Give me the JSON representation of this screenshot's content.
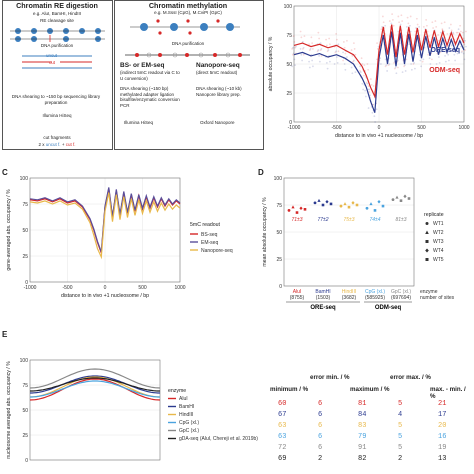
{
  "panelA": {
    "left": {
      "title": "Chromatin RE digestion",
      "sub": "e.g. AluI, BamHI, HindIII",
      "step1": "RE cleavage site",
      "step2": "DNA purification",
      "uncut": "uncut",
      "cut": "cut",
      "step3": "DNA shearing to ~150 bp sequencing library preparation",
      "step4": "Illumina HiSeq",
      "footer_title": "cut fragments",
      "footer_formula_a": "2 x ",
      "footer_formula_b": "uncut f.",
      "footer_formula_c": " + ",
      "footer_formula_d": "cut f."
    },
    "right": {
      "title": "Chromatin methylation",
      "sub": "e.g. M.SssI (CpG), M.CviPI (GpC)",
      "step1": "DNA purification",
      "bs_title": "BS- or EM-seq",
      "bs_sub": "(indirect 5mC readout via C to U conversion)",
      "np_title": "Nanopore-seq",
      "np_sub": "(direct 5mC readout)",
      "bs_steps": "DNA shearing (~150 bp) methylated adapter ligation bisulfite/enzymatic conversion PCR",
      "np_steps": "DNA shearing (~10 kb) Nanopore library prep.",
      "bs_platform": "Illumina HiSeq",
      "np_platform": "Oxford Nanopore"
    }
  },
  "panelB": {
    "ylabel": "absolute occupancy / %",
    "xlabel": "distance to in vivo +1 nucleosome / bp",
    "legend_ore": "ORE-seq",
    "legend_odm": "ODM-seq"
  },
  "panelC": {
    "letter": "C",
    "ylabel": "gene-averaged abs. occupancy / %",
    "xlabel": "distance to in vivo +1 nucleosome / bp",
    "legend_title": "5mC readout",
    "legend": [
      "BS-seq",
      "EM-seq",
      "Nanopore-seq"
    ]
  },
  "panelD": {
    "letter": "D",
    "ylabel": "mean absolute occupancy / %",
    "legend_title": "replicate",
    "replicates": [
      "WT1",
      "WT2",
      "WT3",
      "WT4",
      "WT5"
    ],
    "enzyme_label": "enzyme",
    "sites_label": "number of sites",
    "group_ore": "ORE-seq",
    "group_odm": "ODM-seq",
    "categories": [
      {
        "name": "AluI",
        "sites": "(8755)",
        "summary": "71±3",
        "color": "#d62828"
      },
      {
        "name": "BamHI",
        "sites": "(1503)",
        "summary": "77±2",
        "color": "#2b3a8f"
      },
      {
        "name": "HindIII",
        "sites": "(3682)",
        "summary": "75±3",
        "color": "#e8b84a"
      },
      {
        "name": "CpG (xl.)",
        "sites": "(585925)",
        "summary": "74±4",
        "color": "#4aa3df"
      },
      {
        "name": "GpC (xl.)",
        "sites": "(697694)",
        "summary": "81±3",
        "color": "#888888"
      }
    ]
  },
  "panelE": {
    "letter": "E",
    "ylabel": "nucleosome averaged abs. occupancy / %",
    "legend_title": "enzyme",
    "legend": [
      "AluI",
      "BamHI",
      "HindIII",
      "CpG (xl.)",
      "GpC (xl.)",
      "gDA-seq (AluI, Chereji et al. 2019b)"
    ],
    "table_headers": [
      "minimum / %",
      "error min. / %",
      "maximum / %",
      "error max. / %",
      "max. - min. / %"
    ],
    "table_rows": [
      {
        "color": "#d62828",
        "cells": [
          "60",
          "6",
          "81",
          "5",
          "21"
        ]
      },
      {
        "color": "#2b3a8f",
        "cells": [
          "67",
          "6",
          "84",
          "4",
          "17"
        ]
      },
      {
        "color": "#e8b84a",
        "cells": [
          "63",
          "6",
          "83",
          "5",
          "20"
        ]
      },
      {
        "color": "#4aa3df",
        "cells": [
          "63",
          "6",
          "79",
          "5",
          "16"
        ]
      },
      {
        "color": "#888888",
        "cells": [
          "72",
          "6",
          "91",
          "5",
          "19"
        ]
      },
      {
        "color": "#222222",
        "cells": [
          "69",
          "2",
          "82",
          "2",
          "13"
        ]
      }
    ]
  },
  "chart_data": [
    {
      "panel": "B",
      "type": "line",
      "xlabel": "distance to in vivo +1 nucleosome / bp",
      "ylabel": "absolute occupancy / %",
      "xlim": [
        -1000,
        1000
      ],
      "ylim": [
        0,
        100
      ],
      "xticks": [
        -1000,
        -500,
        0,
        500,
        1000
      ],
      "yticks": [
        0,
        25,
        50,
        75,
        100
      ],
      "series": [
        {
          "name": "ORE-seq",
          "color": "#2b3a8f",
          "x": [
            -1000,
            -900,
            -800,
            -700,
            -600,
            -500,
            -400,
            -300,
            -200,
            -150,
            -100,
            -50,
            0,
            50,
            100,
            150,
            200,
            250,
            300,
            350,
            400,
            450,
            500,
            550,
            600,
            650,
            700,
            750,
            800,
            850,
            900,
            950,
            1000
          ],
          "y": [
            58,
            60,
            57,
            59,
            56,
            58,
            55,
            50,
            38,
            30,
            18,
            8,
            55,
            75,
            50,
            78,
            48,
            77,
            50,
            76,
            52,
            75,
            55,
            74,
            57,
            73,
            58,
            72,
            60,
            71,
            61,
            70,
            62
          ]
        },
        {
          "name": "ODM-seq",
          "color": "#d62828",
          "x": [
            -1000,
            -900,
            -800,
            -700,
            -600,
            -500,
            -400,
            -300,
            -200,
            -150,
            -100,
            -50,
            0,
            50,
            100,
            150,
            200,
            250,
            300,
            350,
            400,
            450,
            500,
            550,
            600,
            650,
            700,
            750,
            800,
            850,
            900,
            950,
            1000
          ],
          "y": [
            66,
            68,
            65,
            67,
            64,
            66,
            62,
            58,
            48,
            40,
            30,
            22,
            62,
            82,
            58,
            84,
            56,
            83,
            58,
            82,
            60,
            81,
            62,
            80,
            64,
            79,
            65,
            78,
            66,
            77,
            67,
            76,
            68
          ]
        }
      ]
    },
    {
      "panel": "C",
      "type": "line",
      "xlabel": "distance to in vivo +1 nucleosome / bp",
      "ylabel": "gene-averaged abs. occupancy / %",
      "xlim": [
        -1000,
        1000
      ],
      "ylim": [
        0,
        100
      ],
      "xticks": [
        -1000,
        -500,
        0,
        500,
        1000
      ],
      "yticks": [
        0,
        25,
        50,
        75,
        100
      ],
      "series": [
        {
          "name": "BS-seq",
          "color": "#d62828",
          "x": [
            -1000,
            -900,
            -800,
            -700,
            -600,
            -500,
            -400,
            -300,
            -200,
            -150,
            -100,
            -50,
            0,
            50,
            100,
            150,
            200,
            250,
            300,
            350,
            400,
            450,
            500,
            550,
            600,
            650,
            700,
            750,
            800,
            850,
            900,
            950,
            1000
          ],
          "y": [
            79,
            78,
            80,
            77,
            80,
            76,
            78,
            72,
            60,
            50,
            38,
            28,
            72,
            90,
            62,
            88,
            64,
            86,
            66,
            84,
            68,
            83,
            70,
            82,
            71,
            81,
            72,
            80,
            73,
            79,
            74,
            78,
            75
          ]
        },
        {
          "name": "EM-seq",
          "color": "#5a4e9a",
          "x": [
            -1000,
            -900,
            -800,
            -700,
            -600,
            -500,
            -400,
            -300,
            -200,
            -150,
            -100,
            -50,
            0,
            50,
            100,
            150,
            200,
            250,
            300,
            350,
            400,
            450,
            500,
            550,
            600,
            650,
            700,
            750,
            800,
            850,
            900,
            950,
            1000
          ],
          "y": [
            80,
            79,
            81,
            78,
            81,
            77,
            79,
            73,
            61,
            51,
            39,
            29,
            73,
            91,
            63,
            89,
            65,
            87,
            67,
            85,
            69,
            84,
            71,
            83,
            72,
            82,
            73,
            81,
            74,
            80,
            75,
            79,
            76
          ]
        },
        {
          "name": "Nanopore-seq",
          "color": "#e8b84a",
          "x": [
            -1000,
            -900,
            -800,
            -700,
            -600,
            -500,
            -400,
            -300,
            -200,
            -150,
            -100,
            -50,
            0,
            50,
            100,
            150,
            200,
            250,
            300,
            350,
            400,
            450,
            500,
            550,
            600,
            650,
            700,
            750,
            800,
            850,
            900,
            950,
            1000
          ],
          "y": [
            77,
            76,
            78,
            75,
            78,
            74,
            76,
            70,
            57,
            45,
            32,
            24,
            68,
            86,
            58,
            84,
            60,
            82,
            62,
            80,
            64,
            79,
            66,
            78,
            67,
            77,
            68,
            76,
            69,
            75,
            70,
            74,
            71
          ]
        }
      ]
    },
    {
      "panel": "D",
      "type": "scatter",
      "ylabel": "mean absolute occupancy / %",
      "ylim": [
        0,
        100
      ],
      "yticks": [
        0,
        25,
        50,
        75,
        100
      ],
      "categories": [
        "AluI",
        "BamHI",
        "HindIII",
        "CpG (xl.)",
        "GpC (xl.)"
      ],
      "points": [
        [
          70,
          73,
          68,
          72,
          71
        ],
        [
          77,
          79,
          75,
          78,
          76
        ],
        [
          74,
          76,
          73,
          77,
          75
        ],
        [
          72,
          76,
          70,
          78,
          74
        ],
        [
          80,
          82,
          79,
          83,
          81
        ]
      ]
    },
    {
      "panel": "E",
      "type": "line",
      "ylabel": "nucleosome averaged abs. occupancy / %",
      "ylim": [
        0,
        100
      ],
      "yticks": [
        0,
        25,
        50,
        75,
        100
      ],
      "series": [
        {
          "name": "AluI",
          "color": "#d62828",
          "min": 60,
          "max": 81
        },
        {
          "name": "BamHI",
          "color": "#2b3a8f",
          "min": 67,
          "max": 84
        },
        {
          "name": "HindIII",
          "color": "#e8b84a",
          "min": 63,
          "max": 83
        },
        {
          "name": "CpG (xl.)",
          "color": "#4aa3df",
          "min": 63,
          "max": 79
        },
        {
          "name": "GpC (xl.)",
          "color": "#888888",
          "min": 72,
          "max": 91
        },
        {
          "name": "gDA-seq (AluI, Chereji et al. 2019b)",
          "color": "#222222",
          "min": 69,
          "max": 82
        }
      ]
    }
  ]
}
